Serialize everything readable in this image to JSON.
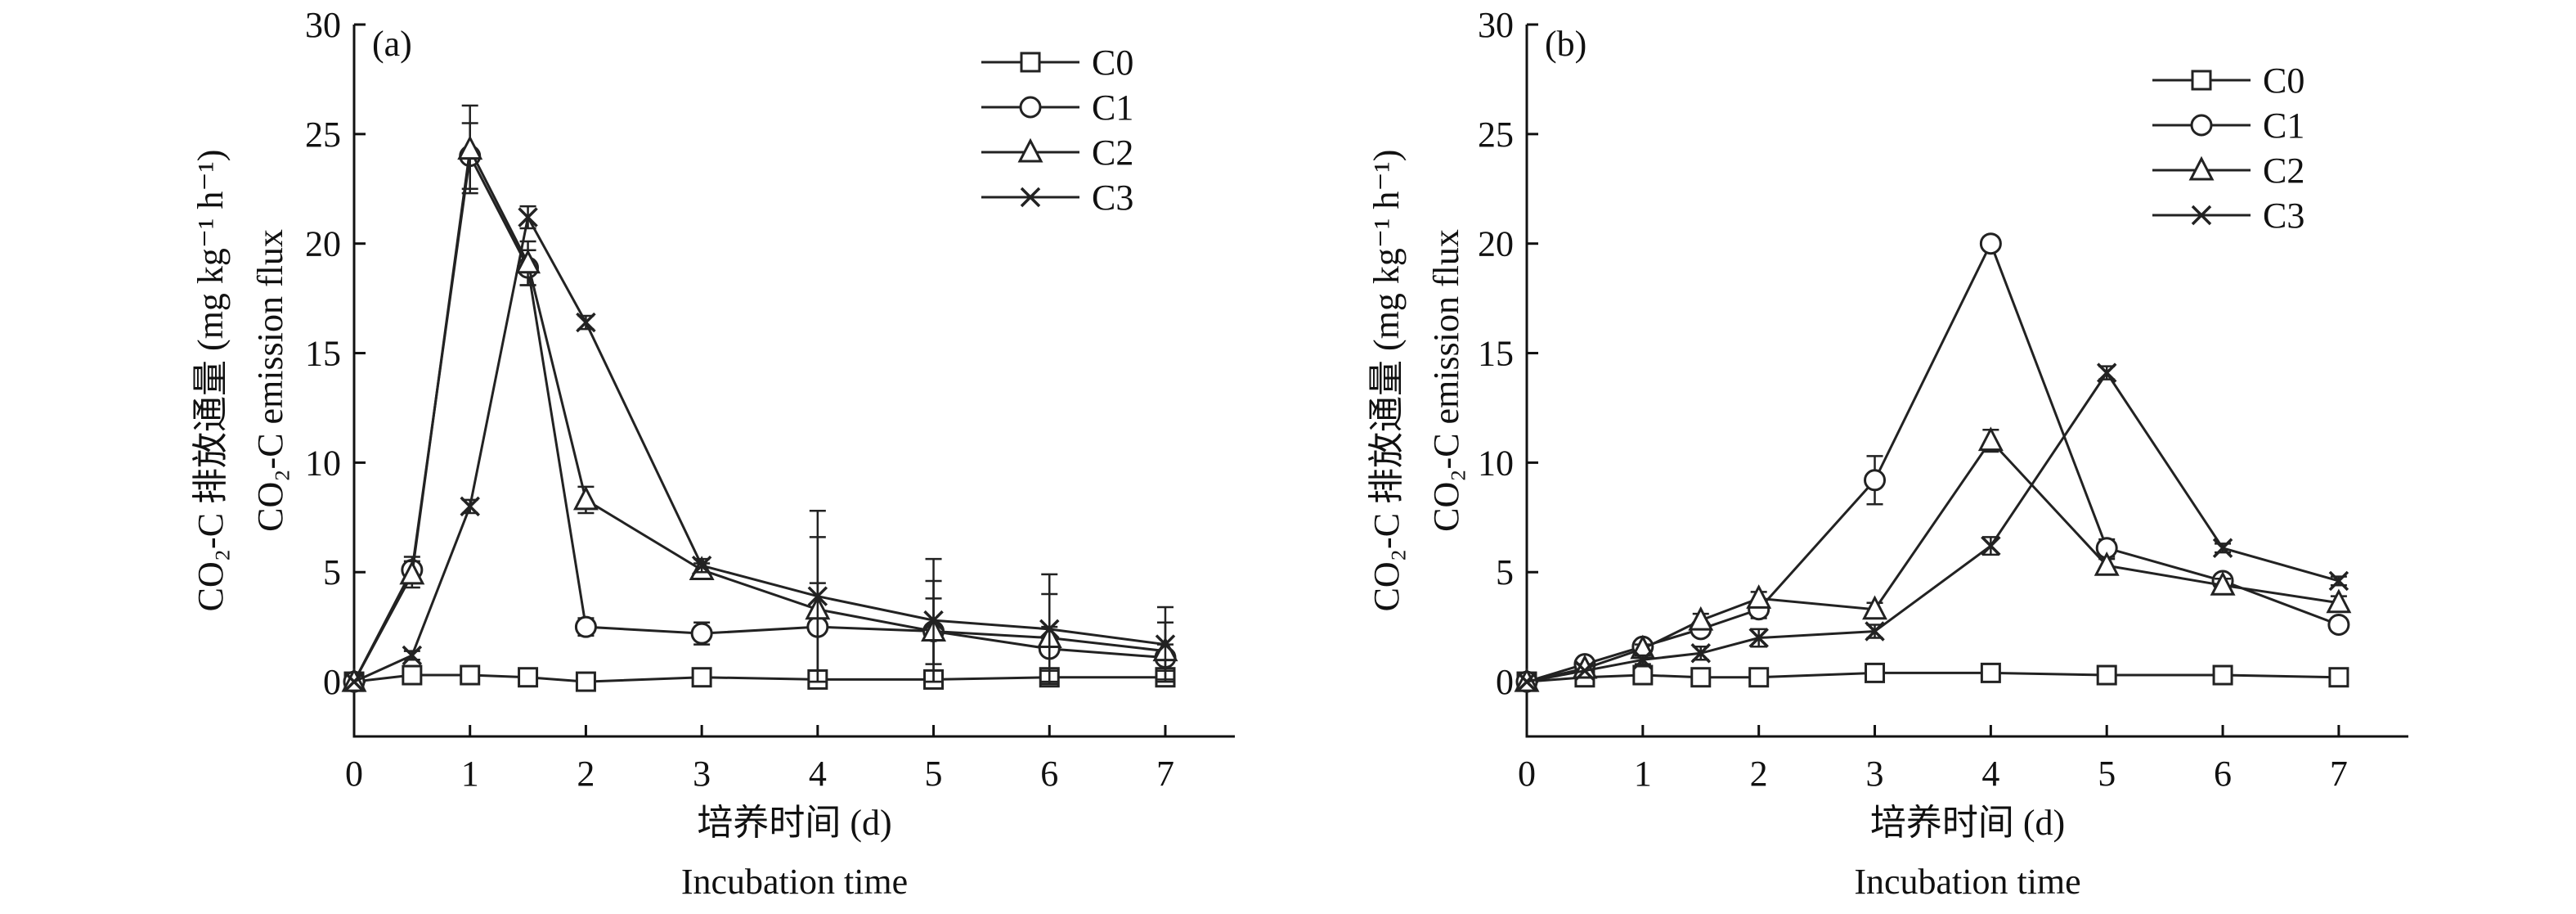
{
  "chart_data": [
    {
      "type": "line",
      "panel_label": "(a)",
      "ylabel_cn": "CO₂-C 排放通量 (mg kg⁻¹ h⁻¹)",
      "ylabel_en": "CO₂-C emission flux",
      "xlabel_cn": "培养时间 (d)",
      "xlabel_en": "Incubation time",
      "xlim": [
        0,
        7.6
      ],
      "ylim": [
        -2.5,
        30
      ],
      "xticks": [
        0,
        1,
        2,
        3,
        4,
        5,
        6,
        7
      ],
      "yticks": [
        0,
        5,
        10,
        15,
        20,
        25,
        30
      ],
      "legend_position": "top-right",
      "series": [
        {
          "name": "C0",
          "marker": "square",
          "x": [
            0,
            0.5,
            1,
            1.5,
            2,
            3,
            4,
            5,
            6,
            7
          ],
          "y": [
            0,
            0.3,
            0.3,
            0.2,
            0,
            0.2,
            0.1,
            0.1,
            0.2,
            0.2
          ],
          "err": [
            0.05,
            0.2,
            0.2,
            0.2,
            0.1,
            0.2,
            0.1,
            0.1,
            0.1,
            0.1
          ]
        },
        {
          "name": "C1",
          "marker": "circle",
          "x": [
            0,
            0.5,
            1,
            1.5,
            2,
            3,
            4,
            5,
            6,
            7
          ],
          "y": [
            0,
            5.1,
            24.0,
            18.9,
            2.5,
            2.2,
            2.5,
            2.3,
            1.5,
            1.1
          ],
          "err": [
            0.1,
            0.6,
            1.5,
            0.8,
            0.4,
            0.5,
            2.0,
            1.5,
            1.0,
            0.6
          ]
        },
        {
          "name": "C2",
          "marker": "triangle",
          "x": [
            0,
            0.5,
            1,
            1.5,
            2,
            3,
            4,
            5,
            6,
            7
          ],
          "y": [
            0,
            4.9,
            24.3,
            19.1,
            8.3,
            5.1,
            3.3,
            2.3,
            2.0,
            1.4
          ],
          "err": [
            0.1,
            0.6,
            2.0,
            1.0,
            0.6,
            0.3,
            3.3,
            2.3,
            2.0,
            1.3
          ]
        },
        {
          "name": "C3",
          "marker": "cross",
          "x": [
            0,
            0.5,
            1,
            1.5,
            2,
            3,
            4,
            5,
            6,
            7
          ],
          "y": [
            0,
            1.2,
            8.0,
            21.2,
            16.4,
            5.3,
            3.9,
            2.8,
            2.4,
            1.7
          ],
          "err": [
            0.1,
            0.2,
            0.3,
            0.5,
            0.3,
            0.3,
            3.9,
            2.8,
            2.5,
            1.7
          ]
        }
      ]
    },
    {
      "type": "line",
      "panel_label": "(b)",
      "ylabel_cn": "CO₂-C 排放通量 (mg kg⁻¹ h⁻¹)",
      "ylabel_en": "CO₂-C emission flux",
      "xlabel_cn": "培养时间 (d)",
      "xlabel_en": "Incubation time",
      "xlim": [
        0,
        7.6
      ],
      "ylim": [
        -2.5,
        30
      ],
      "xticks": [
        0,
        1,
        2,
        3,
        4,
        5,
        6,
        7
      ],
      "yticks": [
        0,
        5,
        10,
        15,
        20,
        25,
        30
      ],
      "legend_position": "top-right",
      "series": [
        {
          "name": "C0",
          "marker": "square",
          "x": [
            0,
            0.5,
            1,
            1.5,
            2,
            3,
            4,
            5,
            6,
            7
          ],
          "y": [
            0,
            0.2,
            0.3,
            0.2,
            0.2,
            0.4,
            0.4,
            0.3,
            0.3,
            0.2
          ],
          "err": [
            0.05,
            0.1,
            0.1,
            0.1,
            0.1,
            0.1,
            0.1,
            0.1,
            0.1,
            0.1
          ]
        },
        {
          "name": "C1",
          "marker": "circle",
          "x": [
            0,
            0.5,
            1,
            1.5,
            2,
            3,
            4,
            5,
            6,
            7
          ],
          "y": [
            0,
            0.8,
            1.6,
            2.4,
            3.3,
            9.2,
            20.0,
            6.1,
            4.6,
            2.6
          ],
          "err": [
            0.05,
            0.2,
            0.2,
            0.3,
            0.4,
            1.1,
            0.3,
            0.4,
            0.3,
            0.3
          ]
        },
        {
          "name": "C2",
          "marker": "triangle",
          "x": [
            0,
            0.5,
            1,
            1.5,
            2,
            3,
            4,
            5,
            6,
            7
          ],
          "y": [
            0,
            0.6,
            1.5,
            2.8,
            3.8,
            3.3,
            11.0,
            5.3,
            4.4,
            3.6
          ],
          "err": [
            0.05,
            0.2,
            0.2,
            0.3,
            0.3,
            0.3,
            0.5,
            0.3,
            0.3,
            0.3
          ]
        },
        {
          "name": "C3",
          "marker": "cross",
          "x": [
            0,
            0.5,
            1,
            1.5,
            2,
            3,
            4,
            5,
            6,
            7
          ],
          "y": [
            0,
            0.5,
            1.0,
            1.3,
            2.0,
            2.3,
            6.2,
            14.1,
            6.1,
            4.6
          ],
          "err": [
            0.05,
            0.1,
            0.2,
            0.3,
            0.4,
            0.3,
            0.4,
            0.3,
            0.2,
            0.2
          ]
        }
      ]
    }
  ]
}
